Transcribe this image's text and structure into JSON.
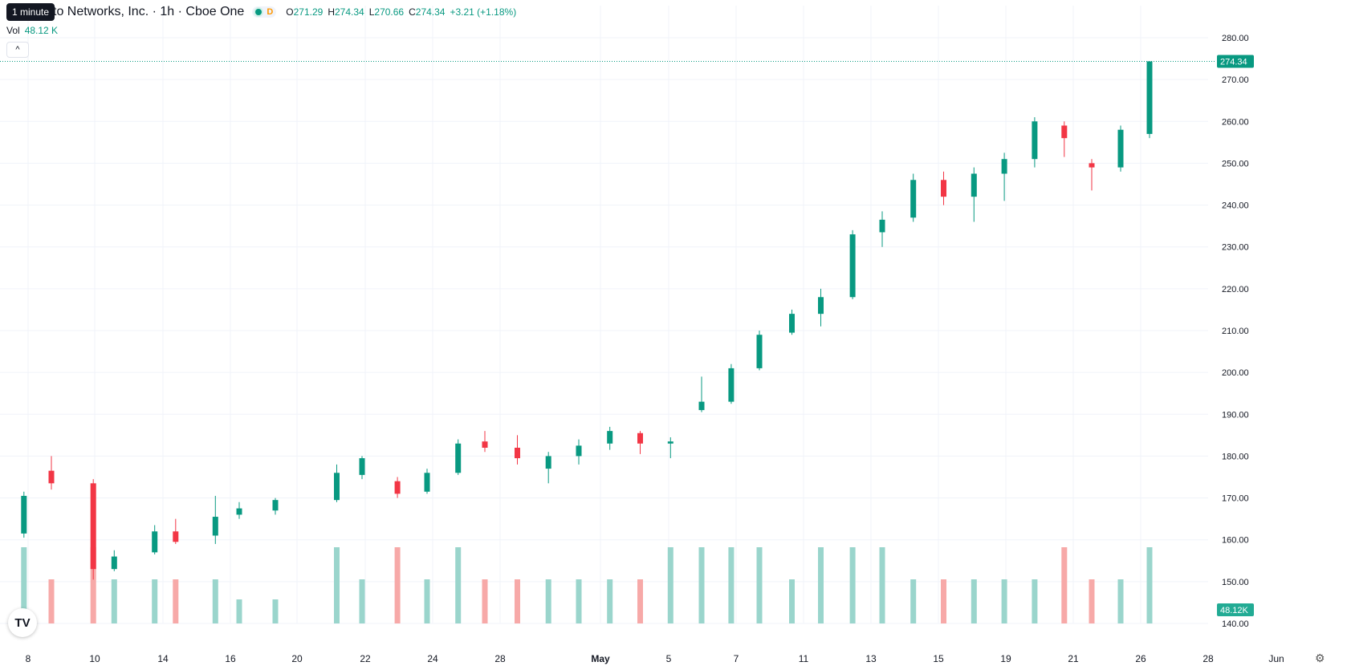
{
  "tooltip": "1 minute",
  "header": {
    "symbol": "to Networks, Inc. · 1h · Cboe One",
    "badge": "D",
    "o_label": "O",
    "o_value": "271.29",
    "h_label": "H",
    "h_value": "274.34",
    "l_label": "L",
    "l_value": "270.66",
    "c_label": "C",
    "c_value": "274.34",
    "change": "+3.21 (+1.18%)"
  },
  "volume": {
    "label": "Vol",
    "value": "48.12 K"
  },
  "collapse_icon": "chevron-up-icon",
  "logo_text": "TV",
  "colors": {
    "up": "#089981",
    "down": "#f23645",
    "up_vol": "#9ad5cc",
    "down_vol": "#f7a9a8",
    "grid": "#f0f3fa"
  },
  "chart_data": {
    "type": "candlestick",
    "title": "",
    "ylim": [
      140,
      280
    ],
    "y_ticks": [
      "280.00",
      "270.00",
      "260.00",
      "250.00",
      "240.00",
      "230.00",
      "220.00",
      "210.00",
      "200.00",
      "190.00",
      "180.00",
      "170.00",
      "160.00",
      "150.00",
      "140.00"
    ],
    "x_ticks": [
      "8",
      "10",
      "14",
      "16",
      "20",
      "22",
      "24",
      "28",
      "May",
      "5",
      "7",
      "11",
      "13",
      "15",
      "19",
      "21",
      "26",
      "28",
      "Jun"
    ],
    "last_price": "274.34",
    "last_volume": "48.12K",
    "grid": true,
    "sessions": [
      {
        "date": "Apr 8",
        "open": 161.5,
        "high": 171.5,
        "low": 160.5,
        "close": 170.5,
        "volume": "high"
      },
      {
        "date": "Apr 9",
        "open": 176.5,
        "high": 180,
        "low": 172,
        "close": 173.5,
        "volume": "medium"
      },
      {
        "date": "Apr 10",
        "open": 173.5,
        "high": 174.5,
        "low": 150.5,
        "close": 153,
        "volume": "high"
      },
      {
        "date": "Apr 11",
        "open": 153,
        "high": 157.5,
        "low": 152.5,
        "close": 156,
        "volume": "medium"
      },
      {
        "date": "Apr 14",
        "open": 157,
        "high": 163.5,
        "low": 156.5,
        "close": 162,
        "volume": "medium"
      },
      {
        "date": "Apr 15",
        "open": 162,
        "high": 165,
        "low": 159,
        "close": 159.5,
        "volume": "medium"
      },
      {
        "date": "Apr 16",
        "open": 161,
        "high": 170.5,
        "low": 159,
        "close": 165.5,
        "volume": "medium"
      },
      {
        "date": "Apr 17",
        "open": 166,
        "high": 169,
        "low": 165,
        "close": 167.5,
        "volume": "low"
      },
      {
        "date": "Apr 21",
        "open": 167,
        "high": 170,
        "low": 166,
        "close": 169.5,
        "volume": "low"
      },
      {
        "date": "Apr 22",
        "open": 169.5,
        "high": 178,
        "low": 169,
        "close": 176,
        "volume": "high"
      },
      {
        "date": "Apr 23",
        "open": 175.5,
        "high": 180,
        "low": 174.5,
        "close": 179.5,
        "volume": "medium"
      },
      {
        "date": "Apr 24",
        "open": 174,
        "high": 175,
        "low": 170,
        "close": 171,
        "volume": "high"
      },
      {
        "date": "Apr 25",
        "open": 171.5,
        "high": 177,
        "low": 171,
        "close": 176,
        "volume": "medium"
      },
      {
        "date": "Apr 28",
        "open": 176,
        "high": 184,
        "low": 175.5,
        "close": 183,
        "volume": "high"
      },
      {
        "date": "Apr 29",
        "open": 183.5,
        "high": 186,
        "low": 181,
        "close": 182,
        "volume": "medium"
      },
      {
        "date": "Apr 30",
        "open": 182,
        "high": 185,
        "low": 178,
        "close": 179.5,
        "volume": "medium"
      },
      {
        "date": "May 1",
        "open": 177,
        "high": 181,
        "low": 173.5,
        "close": 180,
        "volume": "medium"
      },
      {
        "date": "May 2",
        "open": 180,
        "high": 184,
        "low": 178,
        "close": 182.5,
        "volume": "medium"
      },
      {
        "date": "May 5",
        "open": 183,
        "high": 187,
        "low": 181.5,
        "close": 186,
        "volume": "medium"
      },
      {
        "date": "May 6",
        "open": 185.5,
        "high": 186,
        "low": 180.5,
        "close": 183,
        "volume": "medium"
      },
      {
        "date": "May 7",
        "open": 183,
        "high": 184.5,
        "low": 179.5,
        "close": 183.5,
        "volume": "high"
      },
      {
        "date": "May 8",
        "open": 191,
        "high": 199,
        "low": 190.5,
        "close": 193,
        "volume": "high"
      },
      {
        "date": "May 9",
        "open": 193,
        "high": 202,
        "low": 192.5,
        "close": 201,
        "volume": "high"
      },
      {
        "date": "May 12",
        "open": 201,
        "high": 210,
        "low": 200.5,
        "close": 209,
        "volume": "high"
      },
      {
        "date": "May 13",
        "open": 209.5,
        "high": 215,
        "low": 209,
        "close": 214,
        "volume": "medium"
      },
      {
        "date": "May 14",
        "open": 214,
        "high": 220,
        "low": 211,
        "close": 218,
        "volume": "high"
      },
      {
        "date": "May 15",
        "open": 218,
        "high": 234,
        "low": 217.5,
        "close": 233,
        "volume": "high"
      },
      {
        "date": "May 16",
        "open": 233.5,
        "high": 238.5,
        "low": 230,
        "close": 236.5,
        "volume": "high"
      },
      {
        "date": "May 19",
        "open": 237,
        "high": 247.5,
        "low": 236,
        "close": 246,
        "volume": "medium"
      },
      {
        "date": "May 20",
        "open": 246,
        "high": 248,
        "low": 240,
        "close": 242,
        "volume": "medium"
      },
      {
        "date": "May 21",
        "open": 242,
        "high": 249,
        "low": 236,
        "close": 247.5,
        "volume": "medium"
      },
      {
        "date": "May 22",
        "open": 247.5,
        "high": 252.5,
        "low": 241,
        "close": 251,
        "volume": "medium"
      },
      {
        "date": "May 23",
        "open": 251,
        "high": 261,
        "low": 249,
        "close": 260,
        "volume": "medium"
      },
      {
        "date": "May 27",
        "open": 259,
        "high": 260,
        "low": 251.5,
        "close": 256,
        "volume": "high"
      },
      {
        "date": "May 28",
        "open": 250,
        "high": 251,
        "low": 243.5,
        "close": 249,
        "volume": "medium"
      },
      {
        "date": "May 29",
        "open": 249,
        "high": 259,
        "low": 248,
        "close": 258,
        "volume": "medium"
      },
      {
        "date": "May 30",
        "open": 257,
        "high": 274.34,
        "low": 256,
        "close": 274.34,
        "volume": "high"
      }
    ]
  }
}
